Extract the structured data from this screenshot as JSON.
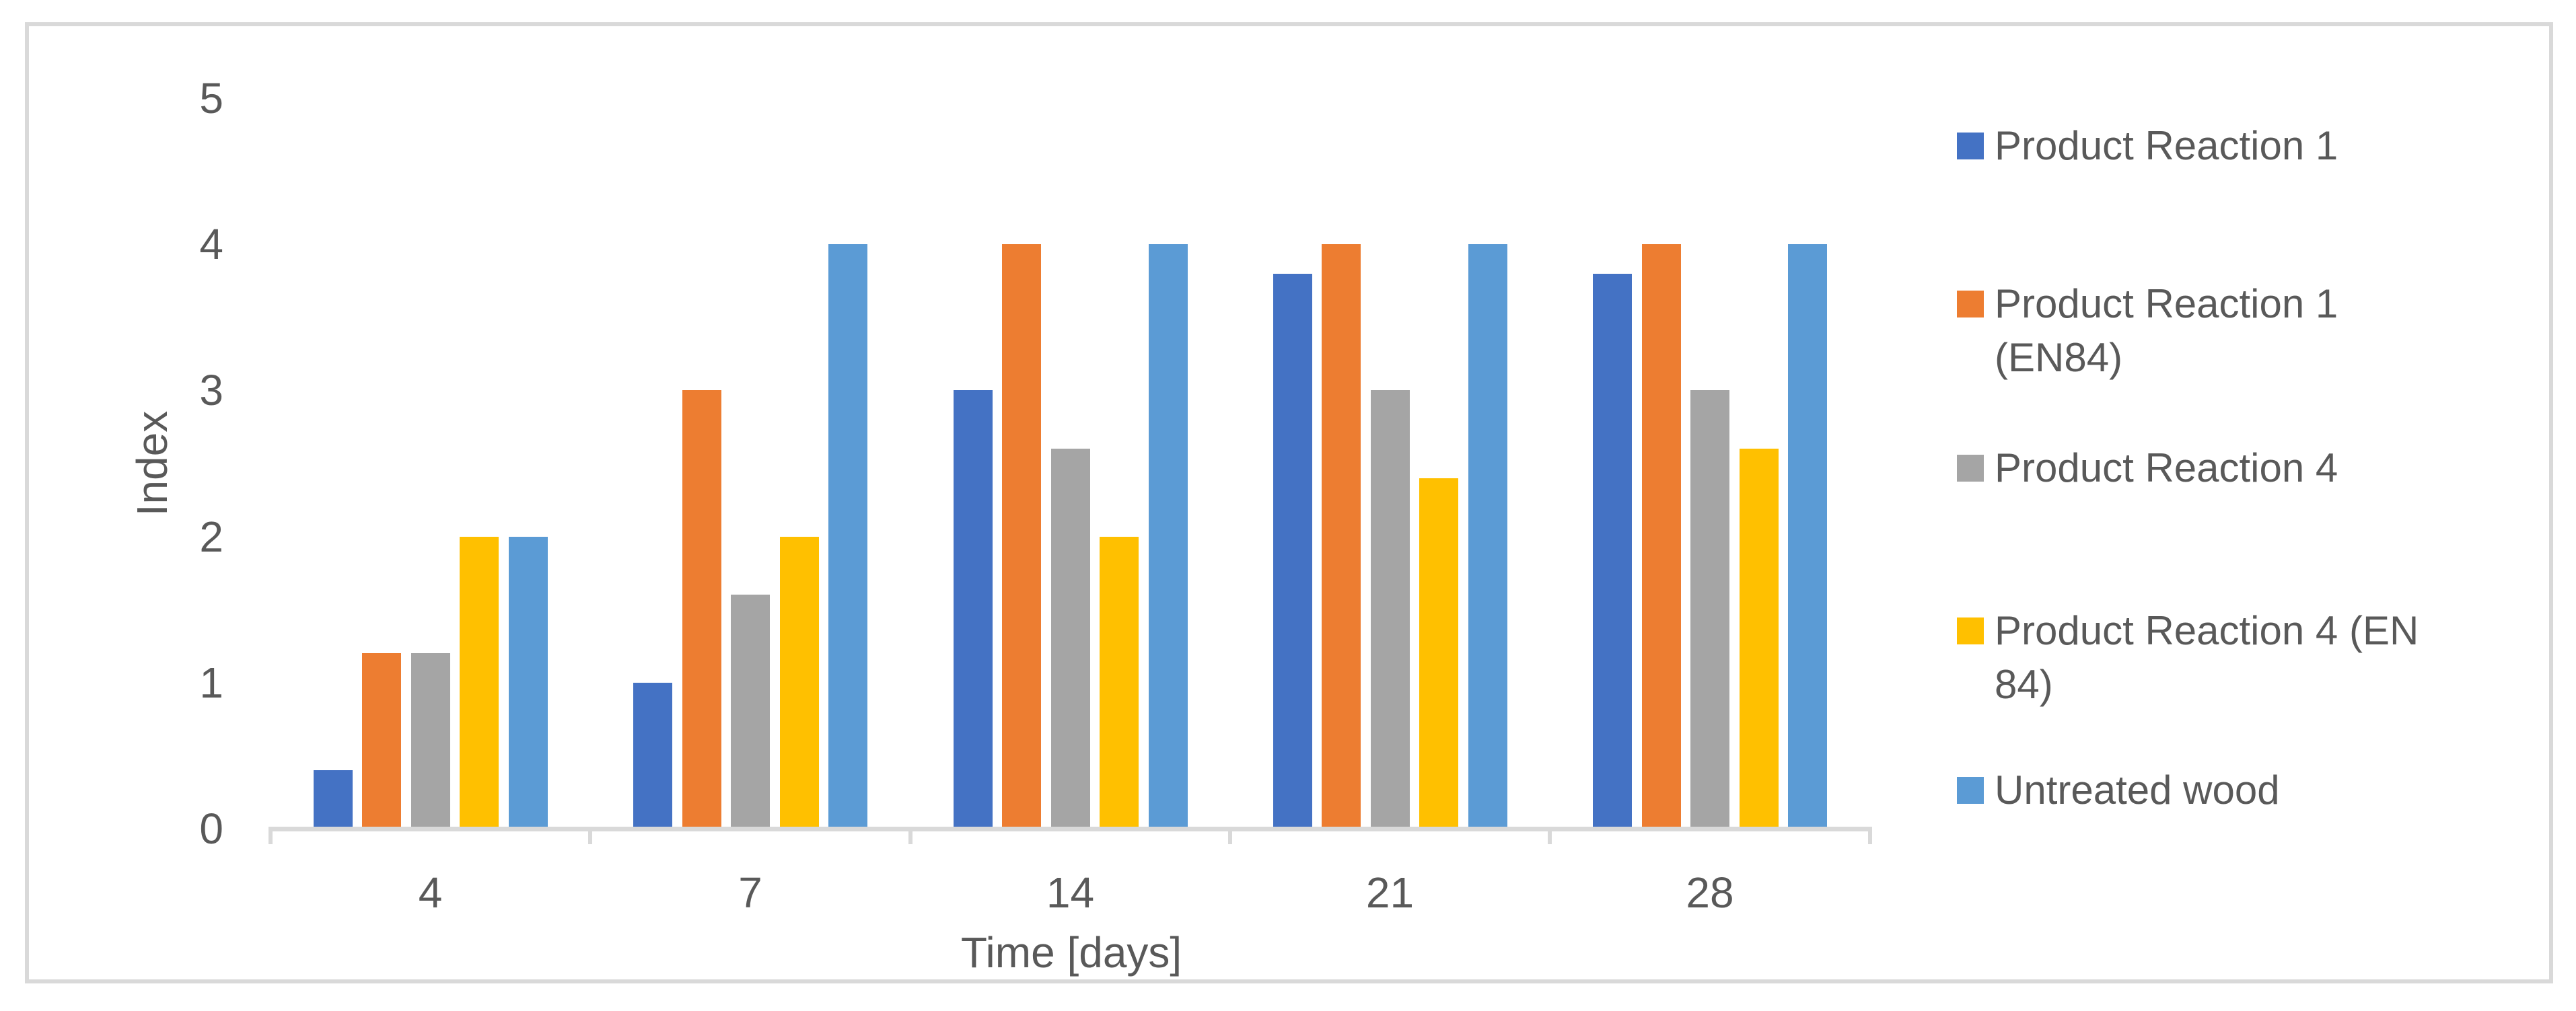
{
  "chart_data": {
    "type": "bar",
    "title": "",
    "xlabel": "Time [days]",
    "ylabel": "Index",
    "categories": [
      "4",
      "7",
      "14",
      "21",
      "28"
    ],
    "series": [
      {
        "name": "Product Reaction 1",
        "color": "#4472C4",
        "values": [
          0.4,
          1.0,
          3.0,
          3.8,
          3.8
        ]
      },
      {
        "name": "Product Reaction 1 (EN84)",
        "color": "#ED7D31",
        "values": [
          1.2,
          3.0,
          4.0,
          4.0,
          4.0
        ]
      },
      {
        "name": "Product Reaction 4",
        "color": "#A5A5A5",
        "values": [
          1.2,
          1.6,
          2.6,
          3.0,
          3.0
        ]
      },
      {
        "name": "Product Reaction 4 (EN 84)",
        "color": "#FFC000",
        "values": [
          2.0,
          2.0,
          2.0,
          2.4,
          2.6
        ]
      },
      {
        "name": "Untreated wood",
        "color": "#5B9BD5",
        "values": [
          2.0,
          4.0,
          4.0,
          4.0,
          4.0
        ]
      }
    ],
    "ylim": [
      0,
      5
    ],
    "yticks": [
      "0",
      "1",
      "2",
      "3",
      "4",
      "5"
    ],
    "grid": false,
    "legend_position": "right",
    "legend_wrapped_lines": [
      [
        "Product Reaction 1"
      ],
      [
        "Product Reaction 1",
        "(EN84)"
      ],
      [
        "Product Reaction 4"
      ],
      [
        "Product Reaction 4 (EN",
        "84)"
      ],
      [
        "Untreated wood"
      ]
    ],
    "colors": {
      "axis_line": "#D9D9D9",
      "frame_border": "#D9D9D9",
      "text": "#595959",
      "background": "#FFFFFF"
    }
  }
}
